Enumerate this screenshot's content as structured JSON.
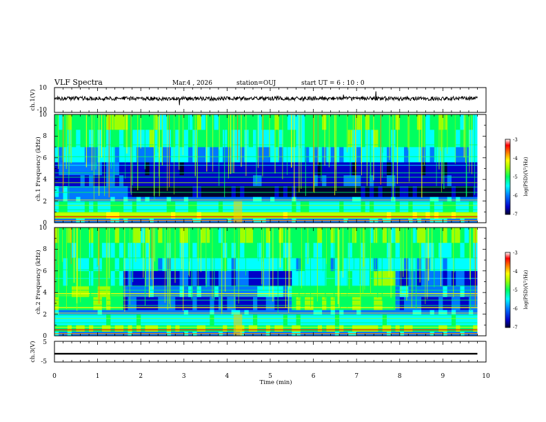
{
  "header": {
    "title": "VLF Spectra",
    "date": "Mar.4 , 2026",
    "station": "station=OUJ",
    "start_ut": "start UT =  6 : 10 : 0"
  },
  "chart_data": [
    {
      "type": "line",
      "name": "ch1-waveform",
      "ylabel": "ch.1(V)",
      "ylim": [
        -10,
        10
      ],
      "ytick_labels": [
        "10",
        "-10"
      ],
      "x_range_min": [
        0,
        9.8
      ],
      "description": "broadband waveform trace near 0 V"
    },
    {
      "type": "heatmap",
      "name": "ch1-spectrogram",
      "ylabel": "ch.1 Frequency (kHz)",
      "ylim": [
        0,
        10
      ],
      "ytick_labels": [
        "0",
        "2",
        "4",
        "6",
        "8",
        "10"
      ],
      "x_range_min": [
        0,
        9.8
      ],
      "colorbar": {
        "label": "log(PSD)(V²/Hz)",
        "min": -7,
        "max": -3,
        "tick_labels": [
          "-3",
          "-4",
          "-5",
          "-6",
          "-7"
        ]
      }
    },
    {
      "type": "heatmap",
      "name": "ch2-spectrogram",
      "ylabel": "ch.2 Frequency (kHz)",
      "ylim": [
        0,
        10
      ],
      "ytick_labels": [
        "0",
        "2",
        "4",
        "6",
        "8",
        "10"
      ],
      "x_range_min": [
        0,
        9.8
      ],
      "colorbar": {
        "label": "log(PSD)(V²/Hz)",
        "min": -7,
        "max": -3,
        "tick_labels": [
          "-3",
          "-4",
          "-5",
          "-6",
          "-7"
        ]
      }
    },
    {
      "type": "line",
      "name": "ch3-waveform",
      "ylabel": "ch.3(V)",
      "ylim": [
        -5,
        5
      ],
      "ytick_labels": [
        "5",
        "-5"
      ],
      "x_range_min": [
        0,
        9.8
      ],
      "description": "flat trace near -1 V"
    }
  ],
  "xaxis": {
    "label": "Time (min)",
    "range": [
      0,
      10
    ],
    "tick_labels": [
      "0",
      "1",
      "2",
      "3",
      "4",
      "5",
      "6",
      "7",
      "8",
      "9",
      "10"
    ]
  },
  "colors": {
    "background": "#ffffff",
    "axis": "#000000",
    "colormap": [
      "#000030",
      "#0000c8",
      "#0078ff",
      "#00ffff",
      "#00ff60",
      "#a0ff00",
      "#ffff00",
      "#ff8000",
      "#ff0000",
      "#ffffff"
    ]
  }
}
